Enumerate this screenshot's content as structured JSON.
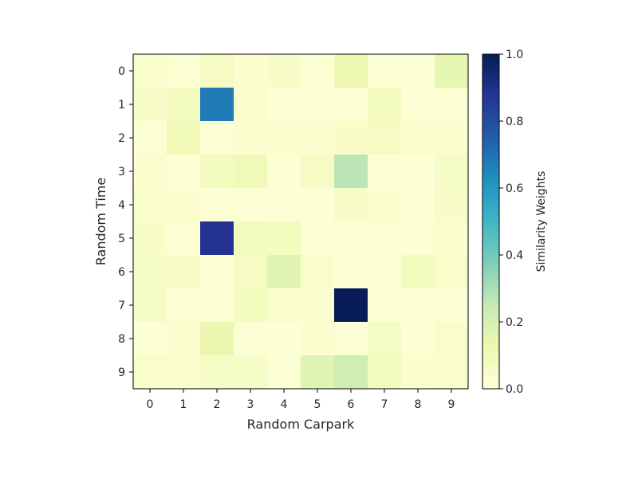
{
  "chart_data": {
    "type": "heatmap",
    "xlabel": "Random Carpark",
    "ylabel": "Random Time",
    "x_categories": [
      "0",
      "1",
      "2",
      "3",
      "4",
      "5",
      "6",
      "7",
      "8",
      "9"
    ],
    "y_categories": [
      "0",
      "1",
      "2",
      "3",
      "4",
      "5",
      "6",
      "7",
      "8",
      "9"
    ],
    "values": [
      [
        0.04,
        0.02,
        0.07,
        0.03,
        0.05,
        0.02,
        0.12,
        0.02,
        0.02,
        0.15
      ],
      [
        0.05,
        0.08,
        0.68,
        0.03,
        0.02,
        0.02,
        0.02,
        0.09,
        0.02,
        0.02
      ],
      [
        0.02,
        0.1,
        0.02,
        0.03,
        0.03,
        0.03,
        0.05,
        0.07,
        0.04,
        0.03
      ],
      [
        0.03,
        0.02,
        0.08,
        0.1,
        0.02,
        0.07,
        0.27,
        0.02,
        0.02,
        0.06
      ],
      [
        0.04,
        0.03,
        0.02,
        0.02,
        0.02,
        0.02,
        0.05,
        0.03,
        0.02,
        0.05
      ],
      [
        0.05,
        0.02,
        0.88,
        0.09,
        0.08,
        0.02,
        0.02,
        0.02,
        0.02,
        0.03
      ],
      [
        0.06,
        0.05,
        0.02,
        0.07,
        0.16,
        0.04,
        0.02,
        0.02,
        0.08,
        0.04
      ],
      [
        0.06,
        0.02,
        0.02,
        0.08,
        0.04,
        0.03,
        1.0,
        0.02,
        0.02,
        0.02
      ],
      [
        0.02,
        0.03,
        0.13,
        0.02,
        0.02,
        0.03,
        0.02,
        0.06,
        0.02,
        0.04
      ],
      [
        0.04,
        0.04,
        0.06,
        0.06,
        0.02,
        0.17,
        0.22,
        0.08,
        0.03,
        0.04
      ]
    ],
    "colorbar": {
      "label": "Similarity Weights",
      "range": [
        0.0,
        1.0
      ],
      "ticks": [
        "0.0",
        "0.2",
        "0.4",
        "0.6",
        "0.8",
        "1.0"
      ],
      "colormap": "YlGnBu",
      "colors": [
        "#ffffd9",
        "#edf8b1",
        "#c7e9b4",
        "#7fcdbb",
        "#41b6c4",
        "#1d91c0",
        "#225ea8",
        "#253494",
        "#081d58"
      ]
    },
    "grid": false
  }
}
